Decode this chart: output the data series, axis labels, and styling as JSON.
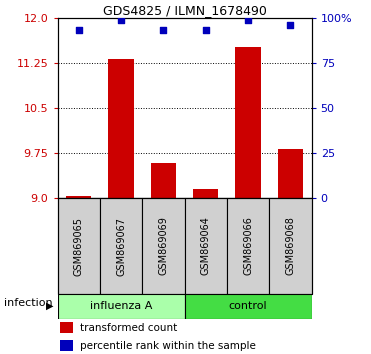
{
  "title": "GDS4825 / ILMN_1678490",
  "samples": [
    "GSM869065",
    "GSM869067",
    "GSM869069",
    "GSM869064",
    "GSM869066",
    "GSM869068"
  ],
  "transformed_counts": [
    9.03,
    11.32,
    9.58,
    9.15,
    11.52,
    9.82
  ],
  "percentile_ranks": [
    93,
    99,
    93,
    93,
    99,
    96
  ],
  "bar_color": "#CC0000",
  "dot_color": "#0000BB",
  "ylim": [
    9.0,
    12.0
  ],
  "yticks_left": [
    9.0,
    9.75,
    10.5,
    11.25,
    12.0
  ],
  "yticks_right": [
    0,
    25,
    50,
    75,
    100
  ],
  "grid_values": [
    9.75,
    10.5,
    11.25
  ],
  "legend_red": "transformed count",
  "legend_blue": "percentile rank within the sample",
  "group_label": "infection",
  "influenza_color": "#AAFFAA",
  "control_color": "#44DD44",
  "sample_bg_color": "#D0D0D0"
}
